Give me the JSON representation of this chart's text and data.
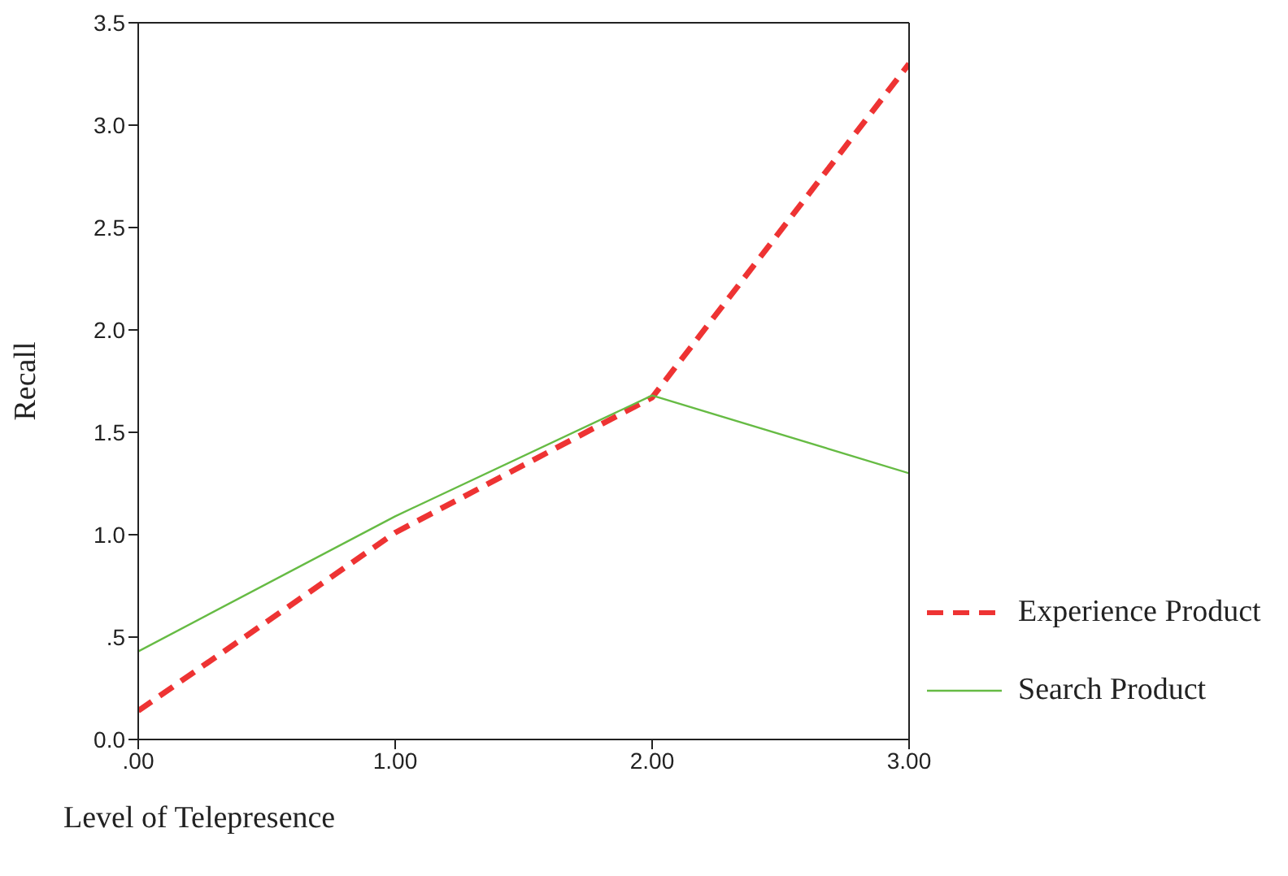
{
  "chart_data": {
    "type": "line",
    "xlabel": "Level of Telepresence",
    "ylabel": "Recall",
    "x": [
      0,
      1,
      2,
      3
    ],
    "series": [
      {
        "name": "Experience Product",
        "color": "#ee3333",
        "line_style": "dashed",
        "values": [
          0.14,
          1.01,
          1.67,
          3.3
        ]
      },
      {
        "name": "Search Product",
        "color": "#66bb44",
        "line_style": "solid",
        "values": [
          0.43,
          1.09,
          1.68,
          1.3
        ]
      }
    ],
    "xlim": [
      0,
      3
    ],
    "xticks": [
      {
        "value": 0,
        "label": ".00"
      },
      {
        "value": 1,
        "label": "1.00"
      },
      {
        "value": 2,
        "label": "2.00"
      },
      {
        "value": 3,
        "label": "3.00"
      }
    ],
    "ylim": [
      0,
      3.5
    ],
    "yticks": [
      {
        "value": 0,
        "label": "0.0"
      },
      {
        "value": 0.5,
        "label": ".5"
      },
      {
        "value": 1,
        "label": "1.0"
      },
      {
        "value": 1.5,
        "label": "1.5"
      },
      {
        "value": 2,
        "label": "2.0"
      },
      {
        "value": 2.5,
        "label": "2.5"
      },
      {
        "value": 3,
        "label": "3.0"
      },
      {
        "value": 3.5,
        "label": "3.5"
      }
    ],
    "grid": false,
    "legend": "right",
    "marker": "none"
  }
}
